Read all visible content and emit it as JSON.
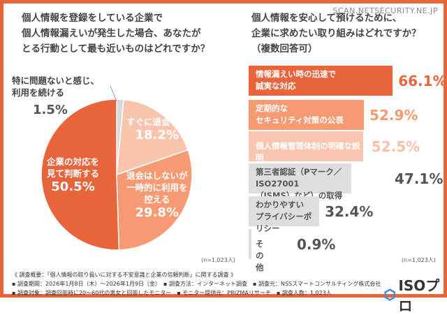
{
  "watermark": "SCAN.NETSECURITY.NE.JP",
  "chart_data": [
    {
      "type": "pie",
      "title": "個人情報を登録をしている企業で\n個人情報漏えいが発生した場合、あなたが\nとる行動として最も近いものはどれですか？",
      "categories": [
        "特に問題ないと感じ、利用を続ける",
        "すぐに退会する",
        "退会はしないが一時的に利用を控える",
        "企業の対応を見て判断する"
      ],
      "values": [
        1.5,
        18.2,
        29.8,
        50.5
      ],
      "value_labels": [
        "1.5%",
        "18.2%",
        "29.8%",
        "50.5%"
      ],
      "label_lines": [
        [
          "特に問題ないと感じ、",
          "利用を続ける"
        ],
        [
          "すぐに退会する"
        ],
        [
          "退会はしないが",
          "一時的に利用を",
          "控える"
        ],
        [
          "企業の対応を",
          "見て判断する"
        ]
      ],
      "colors": [
        "#d9d9d9",
        "#f9c4ae",
        "#f59a72",
        "#e8643a"
      ],
      "n": "(n=1,023人)"
    },
    {
      "type": "bar",
      "orientation": "horizontal",
      "title": "個人情報を安心して預けるために、\n企業に求めたい取り組みはどれですか？\n（複数回答可）",
      "categories": [
        "情報漏えい時の迅速で\n誠実な対応",
        "定期的な\nセキュリティ対策の公表",
        "個人情報管理体制の明確な説明",
        "第三者認証（Pマーク／ISO27001\n（ISMS）など）の取得",
        "わかりやすい\nプライバシーポリシー",
        "その他"
      ],
      "values": [
        66.1,
        52.9,
        52.5,
        47.1,
        32.4,
        0.9
      ],
      "value_labels": [
        "66.1%",
        "52.9%",
        "52.5%",
        "47.1%",
        "32.4%",
        "0.9%"
      ],
      "bar_colors": [
        "#e8643a",
        "#f59a72",
        "#fac5b0",
        "#dedede",
        "#dedede",
        "#dedede"
      ],
      "label_colors": [
        "#fff",
        "#fff",
        "#fff",
        "#555",
        "#555",
        "#555"
      ],
      "value_colors": [
        "#e8643a",
        "#f59a72",
        "#f7c0a8",
        "#555",
        "#555",
        "#555"
      ],
      "n": "(n=1,023人)"
    }
  ],
  "footer": {
    "line1": "《 調査概要：「個人情報の取り扱いに対する不安意識と企業の信頼判断」に関する調査 》",
    "line2": "▪ 調査期間：2026年1月8日（木）～2026年1月9日（金）　▪ 調査方法：インターネット調査　▪ 調査元：NSSスマートコンサルティング株式会社",
    "line3": "▪ 調査対象：調査回答時に20～60代の男女と回答したモニター　▪ モニター提供元：PRIZMAリサーチ　▪ 調査人数：1,023人"
  },
  "logo": "ISOプロ"
}
